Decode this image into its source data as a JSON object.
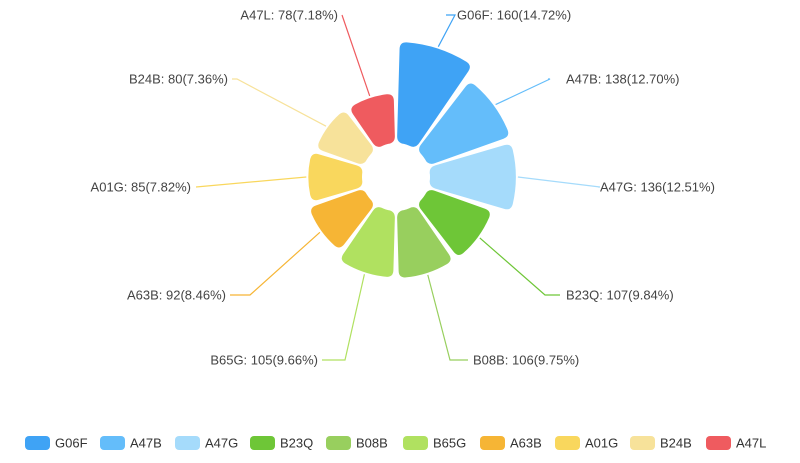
{
  "chart_data": {
    "type": "pie",
    "variant": "rose",
    "inner_radius": true,
    "rounded_corners": true,
    "legend_position": "bottom",
    "slices": [
      {
        "name": "G06F",
        "value": 160,
        "label": "G06F: 160(14.72%)",
        "color": "#3fa3f5"
      },
      {
        "name": "A47B",
        "value": 138,
        "label": "A47B: 138(12.70%)",
        "color": "#64bdfa"
      },
      {
        "name": "A47G",
        "value": 136,
        "label": "A47G: 136(12.51%)",
        "color": "#a5dbfb"
      },
      {
        "name": "B23Q",
        "value": 107,
        "label": "B23Q: 107(9.84%)",
        "color": "#6ec637"
      },
      {
        "name": "B08B",
        "value": 106,
        "label": "B08B: 106(9.75%)",
        "color": "#98cf5e"
      },
      {
        "name": "B65G",
        "value": 105,
        "label": "B65G: 105(9.66%)",
        "color": "#b0e160"
      },
      {
        "name": "A63B",
        "value": 92,
        "label": "A63B: 92(8.46%)",
        "color": "#f6b535"
      },
      {
        "name": "A01G",
        "value": 85,
        "label": "A01G: 85(7.82%)",
        "color": "#f9d75d"
      },
      {
        "name": "B24B",
        "value": 80,
        "label": "B24B: 80(7.36%)",
        "color": "#f7e29a"
      },
      {
        "name": "A47L",
        "value": 78,
        "label": "A47L: 78(7.18%)",
        "color": "#ef5b5f"
      }
    ]
  }
}
